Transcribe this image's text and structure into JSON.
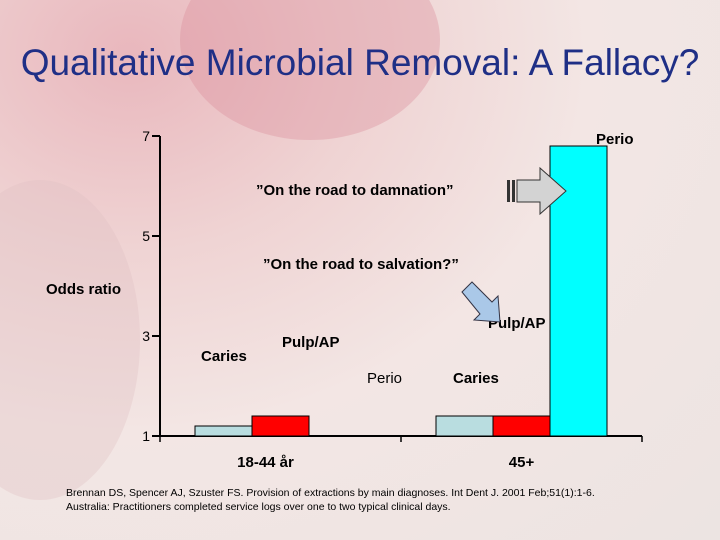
{
  "slide": {
    "title": "Qualitative Microbial Removal: A Fallacy?",
    "footnote_line1": "Brennan DS, Spencer AJ, Szuster FS. Provision of extractions by main diagnoses. Int Dent J. 2001 Feb;51(1):1-6.",
    "footnote_line2": "Australia: Practitioners completed service logs over one to two typical clinical days."
  },
  "chart_data": {
    "type": "bar",
    "title": "",
    "xlabel": "",
    "ylabel": "Odds ratio",
    "ylim": [
      1,
      7
    ],
    "yticks": [
      1,
      3,
      5,
      7
    ],
    "categories": [
      "18-44 år",
      "45+"
    ],
    "series": [
      {
        "name": "Caries",
        "values": [
          1.2,
          1.4
        ],
        "color": "#b9dde0"
      },
      {
        "name": "Pulp/AP",
        "values": [
          1.4,
          1.4
        ],
        "color": "#ff0000"
      },
      {
        "name": "Perio",
        "values": [
          1.0,
          6.8
        ],
        "color": "#00ffff"
      }
    ],
    "annotations": [
      {
        "text": "Caries"
      },
      {
        "text": "Pulp/AP"
      },
      {
        "text": "Perio"
      },
      {
        "text": "Caries"
      },
      {
        "text": "Pulp/AP"
      },
      {
        "text": "Perio"
      },
      {
        "text": "”On the road to damnation”",
        "icon": "right-arrow-icon"
      },
      {
        "text": "”On the road to salvation?”",
        "icon": "down-right-arrow-icon"
      }
    ],
    "grid": false,
    "legend": "none"
  }
}
